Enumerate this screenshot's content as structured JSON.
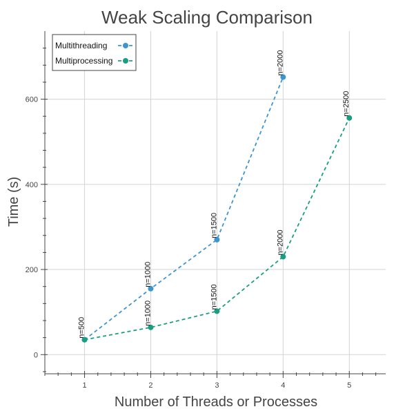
{
  "chart_data": {
    "type": "line",
    "title": "Weak Scaling Comparison",
    "xlabel": "Number of Threads or Processes",
    "ylabel": "Time (s)",
    "xlim": [
      0.4,
      5.55
    ],
    "ylim": [
      -45,
      760
    ],
    "x_ticks": [
      1,
      2,
      3,
      4,
      5
    ],
    "x_tick_labels": [
      "1",
      "2",
      "3",
      "4",
      "5"
    ],
    "x_minor_ticks": [
      0.4,
      0.6,
      0.8,
      1.2,
      1.4,
      1.6,
      1.8,
      2.2,
      2.4,
      2.6,
      2.8,
      3.2,
      3.4,
      3.6,
      3.8,
      4.2,
      4.4,
      4.6,
      4.8,
      5.2,
      5.4
    ],
    "y_ticks": [
      0,
      200,
      400,
      600
    ],
    "y_tick_labels": [
      "0",
      "200",
      "400",
      "600"
    ],
    "y_minor_ticks": [
      -40,
      40,
      80,
      120,
      160,
      240,
      280,
      320,
      360,
      440,
      480,
      520,
      560,
      640,
      680,
      720
    ],
    "grid": true,
    "legend": "top-left",
    "series": [
      {
        "name": "Multithreading",
        "color": "#3d95d0",
        "line_style": "dashed",
        "x": [
          1,
          2,
          3,
          4
        ],
        "values": [
          35,
          155,
          270,
          652
        ],
        "labels": [
          "n=500",
          "n=1000",
          "n=1500",
          "n=2000"
        ]
      },
      {
        "name": "Multiprocessing",
        "color": "#1a9e82",
        "line_style": "dashed",
        "x": [
          1,
          2,
          3,
          4,
          5
        ],
        "values": [
          35,
          64,
          102,
          230,
          556
        ],
        "labels": [
          "",
          "n=1000",
          "n=1500",
          "n=2000",
          "n=2500"
        ]
      }
    ]
  }
}
